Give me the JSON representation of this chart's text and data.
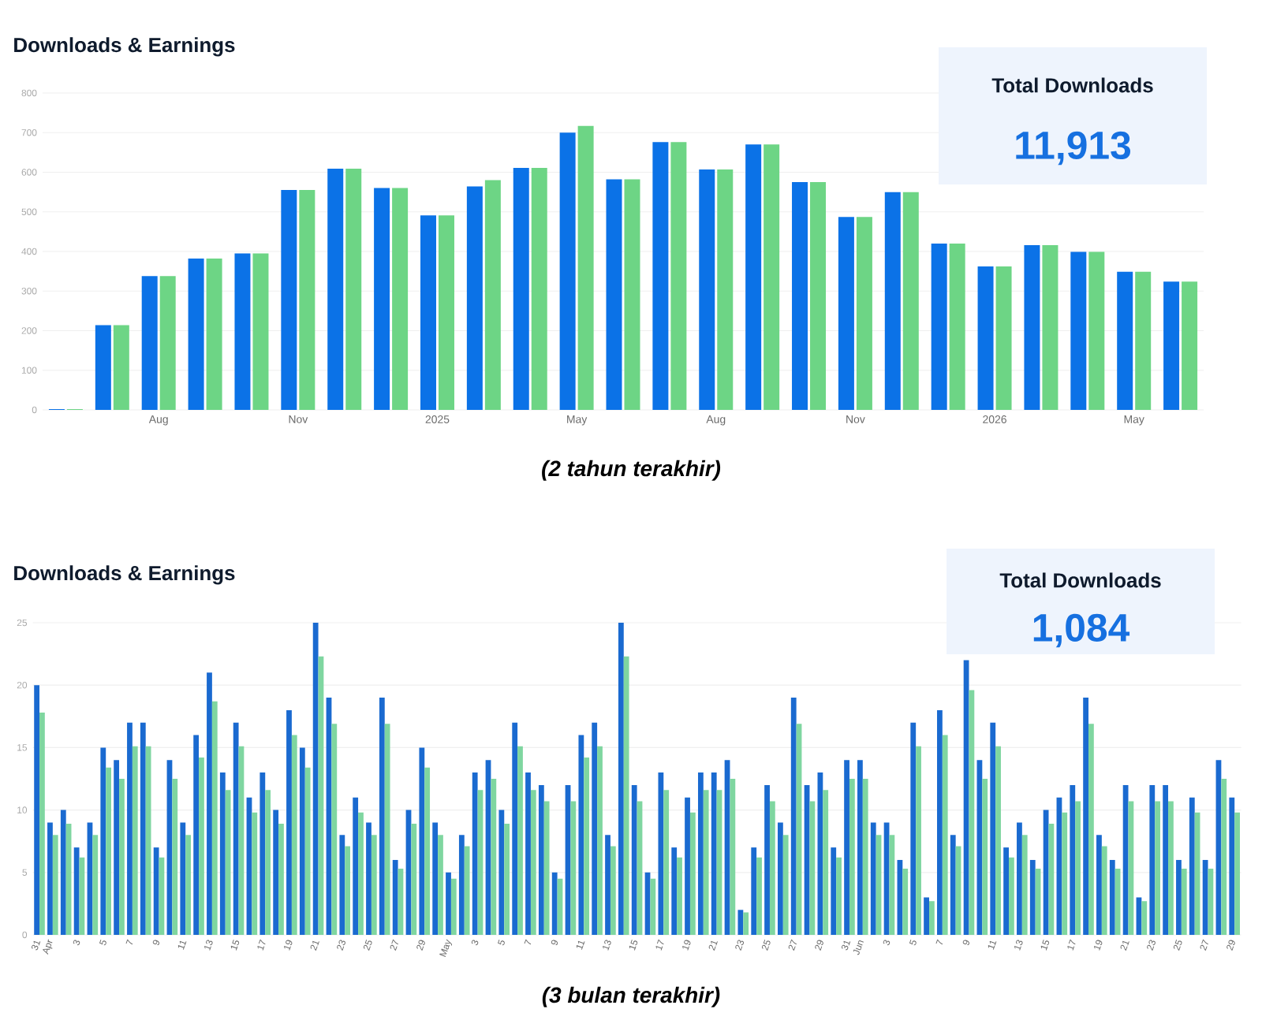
{
  "chart_data": [
    {
      "type": "bar",
      "title": "Downloads & Earnings",
      "categories": [
        null,
        null,
        "Aug",
        null,
        null,
        "Nov",
        null,
        null,
        "2025",
        null,
        null,
        "May",
        null,
        null,
        "Aug",
        null,
        null,
        "Nov",
        null,
        null,
        "2026",
        null,
        null,
        "May",
        null
      ],
      "series": [
        {
          "color": "#0b72e7",
          "values": [
            2,
            214,
            338,
            382,
            395,
            555,
            609,
            560,
            491,
            564,
            611,
            700,
            582,
            676,
            607,
            670,
            575,
            487,
            550,
            420,
            362,
            416,
            399,
            349,
            324
          ]
        },
        {
          "color": "#6dd585",
          "values": [
            2,
            214,
            338,
            382,
            395,
            555,
            609,
            560,
            491,
            580,
            611,
            717,
            582,
            676,
            607,
            670,
            575,
            487,
            550,
            420,
            362,
            416,
            399,
            349,
            324
          ]
        }
      ],
      "ylim": [
        0,
        800
      ],
      "yticks": [
        0,
        100,
        200,
        300,
        400,
        500,
        600,
        700,
        800
      ],
      "grid": "y",
      "annotations": [
        "Total Downloads",
        "11,913",
        "(2 tahun terakhir)"
      ]
    },
    {
      "type": "bar",
      "title": "Downloads & Earnings",
      "categories": [
        "31",
        "Apr",
        null,
        "3",
        null,
        "5",
        null,
        "7",
        null,
        "9",
        null,
        "11",
        null,
        "13",
        null,
        "15",
        null,
        "17",
        null,
        "19",
        null,
        "21",
        null,
        "23",
        null,
        "25",
        null,
        "27",
        null,
        "29",
        null,
        "May",
        null,
        "3",
        null,
        "5",
        null,
        "7",
        null,
        "9",
        null,
        "11",
        null,
        "13",
        null,
        "15",
        null,
        "17",
        null,
        "19",
        null,
        "21",
        null,
        "23",
        null,
        "25",
        null,
        "27",
        null,
        "29",
        null,
        "31",
        "Jun",
        null,
        "3",
        null,
        "5",
        null,
        "7",
        null,
        "9",
        null,
        "11",
        null,
        "13",
        null,
        "15",
        null,
        "17",
        null,
        "19",
        null,
        "21",
        null,
        "23",
        null,
        "25",
        null,
        "27",
        null,
        "29"
      ],
      "series": [
        {
          "color": "#1a6ad0",
          "values": [
            20,
            9,
            10,
            7,
            9,
            15,
            14,
            17,
            17,
            7,
            14,
            9,
            16,
            21,
            13,
            17,
            11,
            13,
            10,
            18,
            15,
            25,
            19,
            8,
            11,
            9,
            19,
            6,
            10,
            15,
            9,
            5,
            8,
            13,
            14,
            10,
            17,
            13,
            12,
            5,
            12,
            16,
            17,
            8,
            25,
            12,
            5,
            13,
            7,
            11,
            13,
            13,
            14,
            2,
            7,
            12,
            9,
            19,
            12,
            13,
            7,
            14,
            14,
            9,
            9,
            6,
            17,
            3,
            18,
            8,
            22,
            14,
            17,
            7,
            9,
            6,
            10,
            11,
            12,
            19,
            8,
            6,
            12,
            3,
            12,
            12,
            6,
            11,
            6,
            14,
            11
          ]
        },
        {
          "color": "#7fd6a0",
          "values": [
            17.8,
            8.0,
            8.9,
            6.2,
            8.0,
            13.4,
            12.5,
            15.1,
            15.1,
            6.2,
            12.5,
            8.0,
            14.2,
            18.7,
            11.6,
            15.1,
            9.8,
            11.6,
            8.9,
            16.0,
            13.4,
            22.3,
            16.9,
            7.1,
            9.8,
            8.0,
            16.9,
            5.3,
            8.9,
            13.4,
            8.0,
            4.5,
            7.1,
            11.6,
            12.5,
            8.9,
            15.1,
            11.6,
            10.7,
            4.5,
            10.7,
            14.2,
            15.1,
            7.1,
            22.3,
            10.7,
            4.5,
            11.6,
            6.2,
            9.8,
            11.6,
            11.6,
            12.5,
            1.8,
            6.2,
            10.7,
            8.0,
            16.9,
            10.7,
            11.6,
            6.2,
            12.5,
            12.5,
            8.0,
            8.0,
            5.3,
            15.1,
            2.7,
            16.0,
            7.1,
            19.6,
            12.5,
            15.1,
            6.2,
            8.0,
            5.3,
            8.9,
            9.8,
            10.7,
            16.9,
            7.1,
            5.3,
            10.7,
            2.7,
            10.7,
            10.7,
            5.3,
            9.8,
            5.3,
            12.5,
            9.8
          ]
        }
      ],
      "ylim": [
        0,
        25
      ],
      "yticks": [
        0,
        5,
        10,
        15,
        20,
        25
      ],
      "grid": "y",
      "annotations": [
        "Total Downloads",
        "1,084",
        "(3 bulan terakhir)"
      ]
    }
  ]
}
